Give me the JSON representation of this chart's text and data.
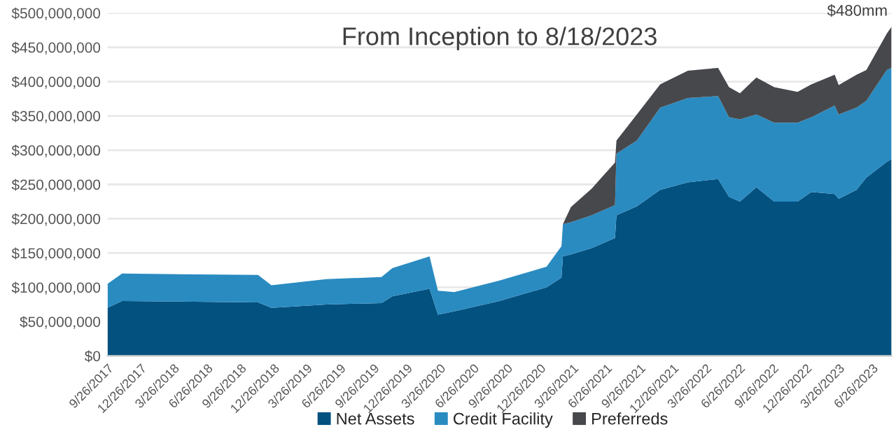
{
  "chart_data": {
    "type": "area",
    "stacked": true,
    "title": "From Inception to 8/18/2023",
    "x": [
      "2017-09-26",
      "2017-11-05",
      "2018-11-13",
      "2018-12-20",
      "2019-05-20",
      "2019-10-18",
      "2019-11-17",
      "2020-02-27",
      "2020-03-21",
      "2020-05-05",
      "2020-09-06",
      "2021-01-13",
      "2021-02-23",
      "2021-02-27",
      "2021-03-21",
      "2021-05-17",
      "2021-07-20",
      "2021-07-24",
      "2021-09-18",
      "2021-11-21",
      "2022-02-05",
      "2022-04-29",
      "2022-05-29",
      "2022-06-28",
      "2022-08-12",
      "2022-09-30",
      "2022-12-03",
      "2023-01-10",
      "2023-03-15",
      "2023-03-26",
      "2023-05-14",
      "2023-06-10",
      "2023-08-05",
      "2023-08-18"
    ],
    "series": [
      {
        "name": "Net Assets",
        "color": "#03517f",
        "values": [
          70000000,
          80000000,
          78000000,
          70000000,
          75000000,
          77000000,
          87000000,
          98000000,
          60000000,
          65000000,
          80000000,
          100000000,
          114000000,
          145000000,
          148000000,
          157000000,
          172000000,
          205000000,
          218000000,
          242000000,
          253000000,
          258000000,
          232000000,
          225000000,
          246000000,
          225000000,
          225000000,
          239000000,
          236000000,
          229000000,
          242000000,
          260000000,
          283000000,
          287000000
        ]
      },
      {
        "name": "Credit Facility",
        "color": "#2a8bc1",
        "values": [
          35000000,
          40000000,
          40000000,
          33000000,
          37000000,
          38000000,
          41000000,
          47000000,
          35000000,
          28000000,
          30000000,
          30000000,
          46000000,
          47000000,
          47000000,
          48000000,
          48000000,
          90000000,
          96000000,
          120000000,
          123000000,
          121000000,
          116000000,
          120000000,
          106000000,
          115000000,
          115000000,
          109000000,
          129000000,
          123000000,
          120000000,
          112000000,
          134000000,
          133000000
        ]
      },
      {
        "name": "Preferreds",
        "color": "#46484c",
        "values": [
          0,
          0,
          0,
          0,
          0,
          0,
          0,
          0,
          0,
          0,
          0,
          0,
          0,
          0,
          22000000,
          39000000,
          62000000,
          19000000,
          38000000,
          34000000,
          40000000,
          41000000,
          44000000,
          38000000,
          54000000,
          52000000,
          45000000,
          48000000,
          45000000,
          43000000,
          48000000,
          45000000,
          53000000,
          60000000
        ]
      }
    ],
    "xlim": [
      "2017-09-26",
      "2023-08-18"
    ],
    "xticks": [
      {
        "value": "2017-09-26",
        "label": "9/26/2017"
      },
      {
        "value": "2017-12-26",
        "label": "12/26/2017"
      },
      {
        "value": "2018-03-26",
        "label": "3/26/2018"
      },
      {
        "value": "2018-06-26",
        "label": "6/26/2018"
      },
      {
        "value": "2018-09-26",
        "label": "9/26/2018"
      },
      {
        "value": "2018-12-26",
        "label": "12/26/2018"
      },
      {
        "value": "2019-03-26",
        "label": "3/26/2019"
      },
      {
        "value": "2019-06-26",
        "label": "6/26/2019"
      },
      {
        "value": "2019-09-26",
        "label": "9/26/2019"
      },
      {
        "value": "2019-12-26",
        "label": "12/26/2019"
      },
      {
        "value": "2020-03-26",
        "label": "3/26/2020"
      },
      {
        "value": "2020-06-26",
        "label": "6/26/2020"
      },
      {
        "value": "2020-09-26",
        "label": "9/26/2020"
      },
      {
        "value": "2020-12-26",
        "label": "12/26/2020"
      },
      {
        "value": "2021-03-26",
        "label": "3/26/2021"
      },
      {
        "value": "2021-06-26",
        "label": "6/26/2021"
      },
      {
        "value": "2021-09-26",
        "label": "9/26/2021"
      },
      {
        "value": "2021-12-26",
        "label": "12/26/2021"
      },
      {
        "value": "2022-03-26",
        "label": "3/26/2022"
      },
      {
        "value": "2022-06-26",
        "label": "6/26/2022"
      },
      {
        "value": "2022-09-26",
        "label": "9/26/2022"
      },
      {
        "value": "2022-12-26",
        "label": "12/26/2022"
      },
      {
        "value": "2023-03-26",
        "label": "3/26/2023"
      },
      {
        "value": "2023-06-26",
        "label": "6/26/2023"
      }
    ],
    "ylim": [
      0,
      500000000
    ],
    "yticks": [
      {
        "value": 0,
        "label": "$0"
      },
      {
        "value": 50000000,
        "label": "$50,000,000"
      },
      {
        "value": 100000000,
        "label": "$100,000,000"
      },
      {
        "value": 150000000,
        "label": "$150,000,000"
      },
      {
        "value": 200000000,
        "label": "$200,000,000"
      },
      {
        "value": 250000000,
        "label": "$250,000,000"
      },
      {
        "value": 300000000,
        "label": "$300,000,000"
      },
      {
        "value": 350000000,
        "label": "$350,000,000"
      },
      {
        "value": 400000000,
        "label": "$400,000,000"
      },
      {
        "value": 450000000,
        "label": "$450,000,000"
      },
      {
        "value": 500000000,
        "label": "$500,000,000"
      }
    ],
    "annotations": [
      {
        "text": "$480mm",
        "x": "2023-08-18",
        "y": 480000000
      }
    ],
    "grid": "y",
    "legend": "bottom"
  }
}
